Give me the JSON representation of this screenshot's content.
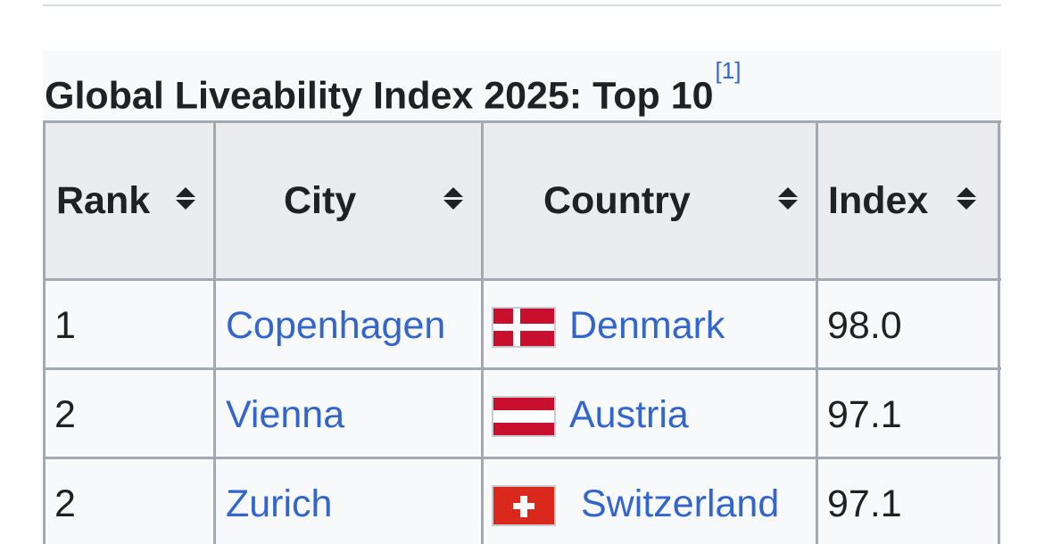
{
  "table": {
    "caption": "Global Liveability Index 2025: Top 10",
    "caption_ref": "[1]",
    "headers": {
      "rank": "Rank",
      "city": "City",
      "country": "Country",
      "index": "Index"
    },
    "rows": [
      {
        "rank": "1",
        "city": "Copenhagen",
        "country": "Denmark",
        "flag": "denmark-flag-icon",
        "index": "98.0"
      },
      {
        "rank": "2",
        "city": "Vienna",
        "country": "Austria",
        "flag": "austria-flag-icon",
        "index": "97.1"
      },
      {
        "rank": "2",
        "city": "Zurich",
        "country": "Switzerland",
        "flag": "switzerland-flag-icon",
        "index": "97.1"
      }
    ]
  },
  "colors": {
    "link": "#3366cc",
    "header_bg": "#eaecf0",
    "cell_bg": "#f8f9fa",
    "border": "#a2a9b1"
  }
}
